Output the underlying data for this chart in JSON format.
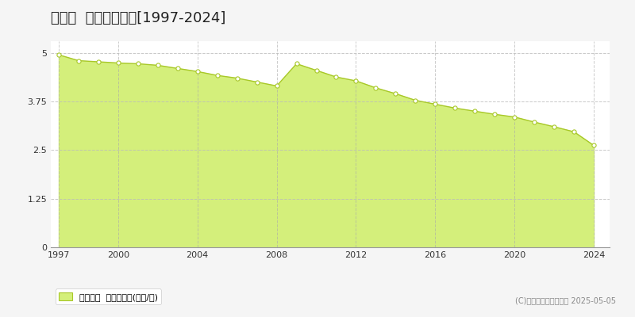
{
  "title": "足寄町  基準地価推移[1997-2024]",
  "years": [
    1997,
    1998,
    1999,
    2000,
    2001,
    2002,
    2003,
    2004,
    2005,
    2006,
    2007,
    2008,
    2009,
    2010,
    2011,
    2012,
    2013,
    2014,
    2015,
    2016,
    2017,
    2018,
    2019,
    2020,
    2021,
    2022,
    2023,
    2024
  ],
  "values": [
    4.95,
    4.8,
    4.77,
    4.74,
    4.72,
    4.68,
    4.6,
    4.52,
    4.42,
    4.35,
    4.25,
    4.15,
    4.72,
    4.55,
    4.38,
    4.28,
    4.1,
    3.95,
    3.78,
    3.68,
    3.58,
    3.5,
    3.42,
    3.35,
    3.22,
    3.1,
    2.97,
    2.62
  ],
  "fill_color": "#d4ef7b",
  "line_color": "#a8c828",
  "marker_facecolor": "#ffffff",
  "marker_edgecolor": "#a8c828",
  "background_color": "#f5f5f5",
  "plot_bg_color": "#ffffff",
  "grid_h_color": "#bbbbbb",
  "grid_v_color": "#aaaaaa",
  "title_fontsize": 13,
  "yticks": [
    0,
    1.25,
    2.5,
    3.75,
    5
  ],
  "ylim": [
    0,
    5.3
  ],
  "xlim": [
    1996.6,
    2024.8
  ],
  "xticks": [
    1997,
    2000,
    2004,
    2008,
    2012,
    2016,
    2020,
    2024
  ],
  "legend_label": "基準地価  平均坪単価(万円/坪)",
  "copyright_text": "(C)土地価格ドットコム 2025-05-05"
}
